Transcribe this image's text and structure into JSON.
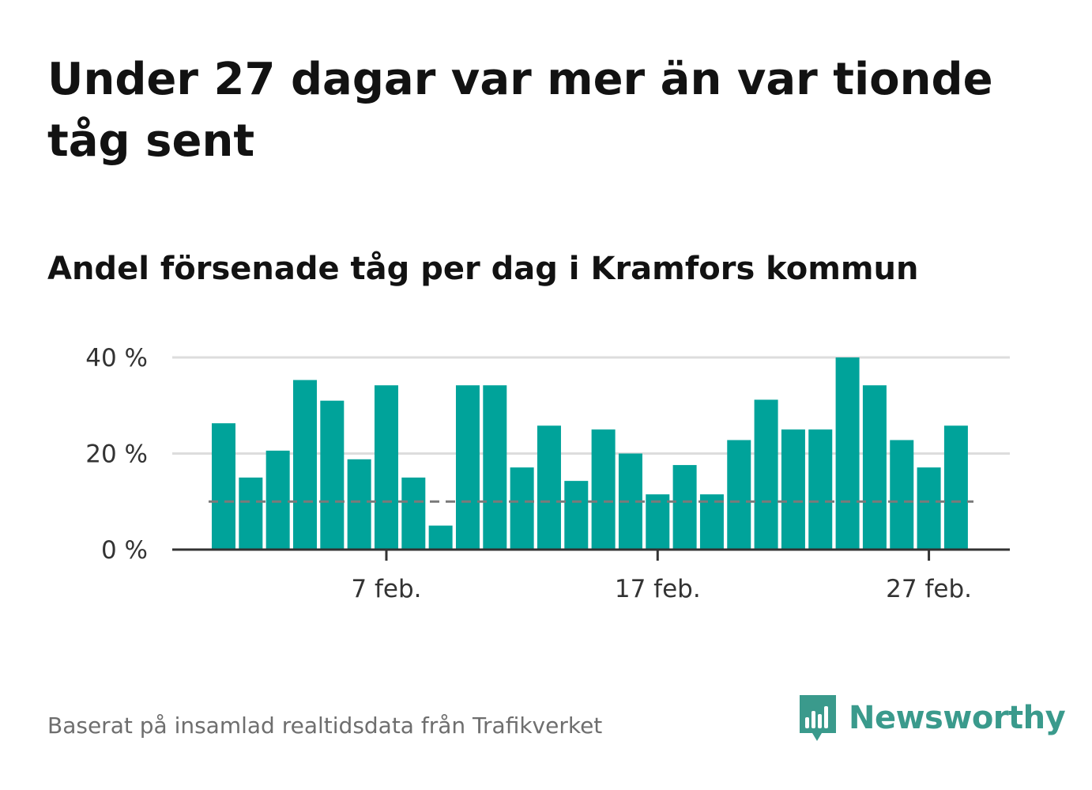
{
  "title": "Under 27 dagar var mer än var tionde tåg sent",
  "subtitle": "Andel försenade tåg per dag i Kramfors kommun",
  "source": "Baserat på insamlad realtidsdata från Trafikverket",
  "logo": {
    "text": "Newsworthy",
    "icon": "newsworthy-chart-bubble-icon",
    "color": "#3a9a8c"
  },
  "colors": {
    "bar": "#00a39a",
    "reference_line": "#7a7a7a",
    "grid": "#dddddd",
    "axis": "#333333"
  },
  "chart_data": {
    "type": "bar",
    "x": [
      "1 feb.",
      "2 feb.",
      "3 feb.",
      "4 feb.",
      "5 feb.",
      "6 feb.",
      "7 feb.",
      "8 feb.",
      "9 feb.",
      "10 feb.",
      "11 feb.",
      "12 feb.",
      "13 feb.",
      "14 feb.",
      "15 feb.",
      "16 feb.",
      "17 feb.",
      "18 feb.",
      "19 feb.",
      "20 feb.",
      "21 feb.",
      "22 feb.",
      "23 feb.",
      "24 feb.",
      "25 feb.",
      "26 feb.",
      "27 feb.",
      "28 feb."
    ],
    "values": [
      26.3,
      15,
      20.6,
      35.3,
      31,
      18.8,
      34.2,
      15,
      5,
      34.2,
      34.2,
      17.1,
      25.8,
      14.3,
      25,
      20,
      11.5,
      17.6,
      11.5,
      22.8,
      31.2,
      25,
      25,
      40,
      34.2,
      22.8,
      17.1,
      25.8
    ],
    "reference_line": 10,
    "xticks": [
      {
        "x": "7 feb.",
        "label": "7 feb."
      },
      {
        "x": "17 feb.",
        "label": "17 feb."
      },
      {
        "x": "27 feb.",
        "label": "27 feb."
      }
    ],
    "yticks": [
      {
        "value": 0,
        "label": "0 %"
      },
      {
        "value": 20,
        "label": "20 %"
      },
      {
        "value": 40,
        "label": "40 %"
      }
    ],
    "ylim": [
      0,
      40
    ],
    "grid": true
  }
}
